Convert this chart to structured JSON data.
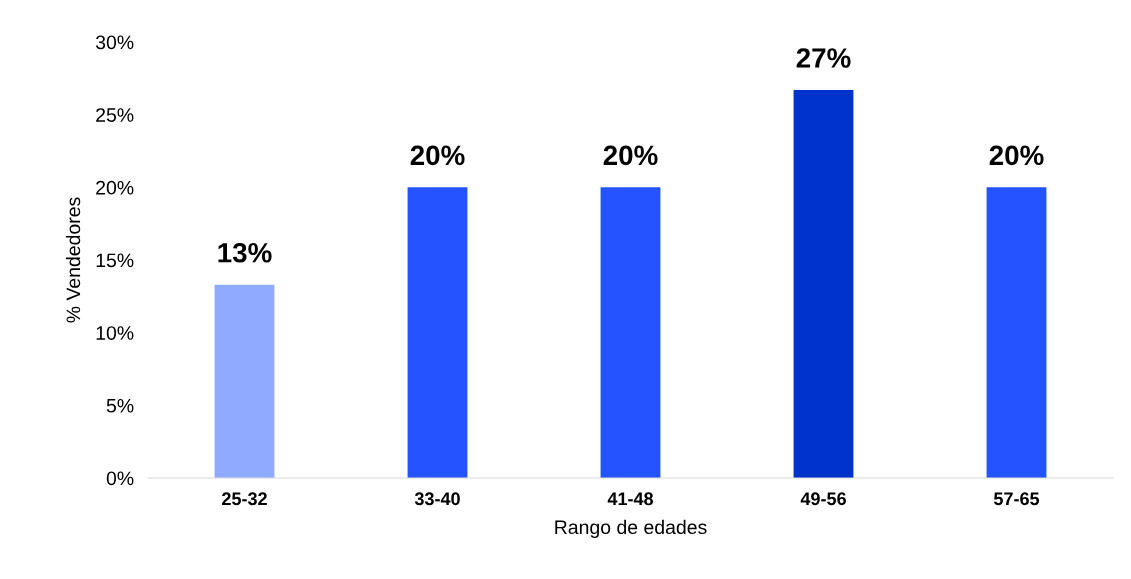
{
  "chart_data": {
    "type": "bar",
    "xlabel": "Rango de edades",
    "ylabel": "% Vendedores",
    "categories": [
      "25-32",
      "33-40",
      "41-48",
      "49-56",
      "57-65"
    ],
    "values": [
      13.3,
      20,
      20,
      26.7,
      20
    ],
    "colors": [
      "#8faaff",
      "#2454ff",
      "#2454ff",
      "#0033cc",
      "#2454ff"
    ],
    "value_labels": [
      "13%",
      "20%",
      "20%",
      "27%",
      "20%"
    ],
    "ylim": [
      0,
      30
    ],
    "yticks": [
      {
        "value": 0,
        "label": "0%"
      },
      {
        "value": 5,
        "label": "5%"
      },
      {
        "value": 10,
        "label": "10%"
      },
      {
        "value": 15,
        "label": "15%"
      },
      {
        "value": 20,
        "label": "20%"
      },
      {
        "value": 25,
        "label": "25%"
      },
      {
        "value": 30,
        "label": "30%"
      }
    ],
    "grid": false
  }
}
